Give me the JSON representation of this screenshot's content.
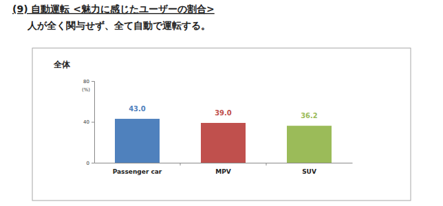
{
  "chart_data": {
    "type": "bar",
    "title": "(9) 自動運転 <魅力に感じたユーザーの割合>",
    "subtitle": "人が全く関与せず、全て自動で運転する。",
    "annotations": [
      "全体"
    ],
    "ylabel": "(%)",
    "categories": [
      "Passenger car",
      "MPV",
      "SUV"
    ],
    "values": [
      43.0,
      39.0,
      36.2
    ],
    "value_labels": [
      "43.0",
      "39.0",
      "36.2"
    ],
    "colors": [
      "#4f81bd",
      "#c0504d",
      "#9bbb59"
    ],
    "ylim": [
      0,
      80
    ],
    "yticks": [
      0,
      40,
      80
    ],
    "grid": false,
    "data_labels": true
  }
}
